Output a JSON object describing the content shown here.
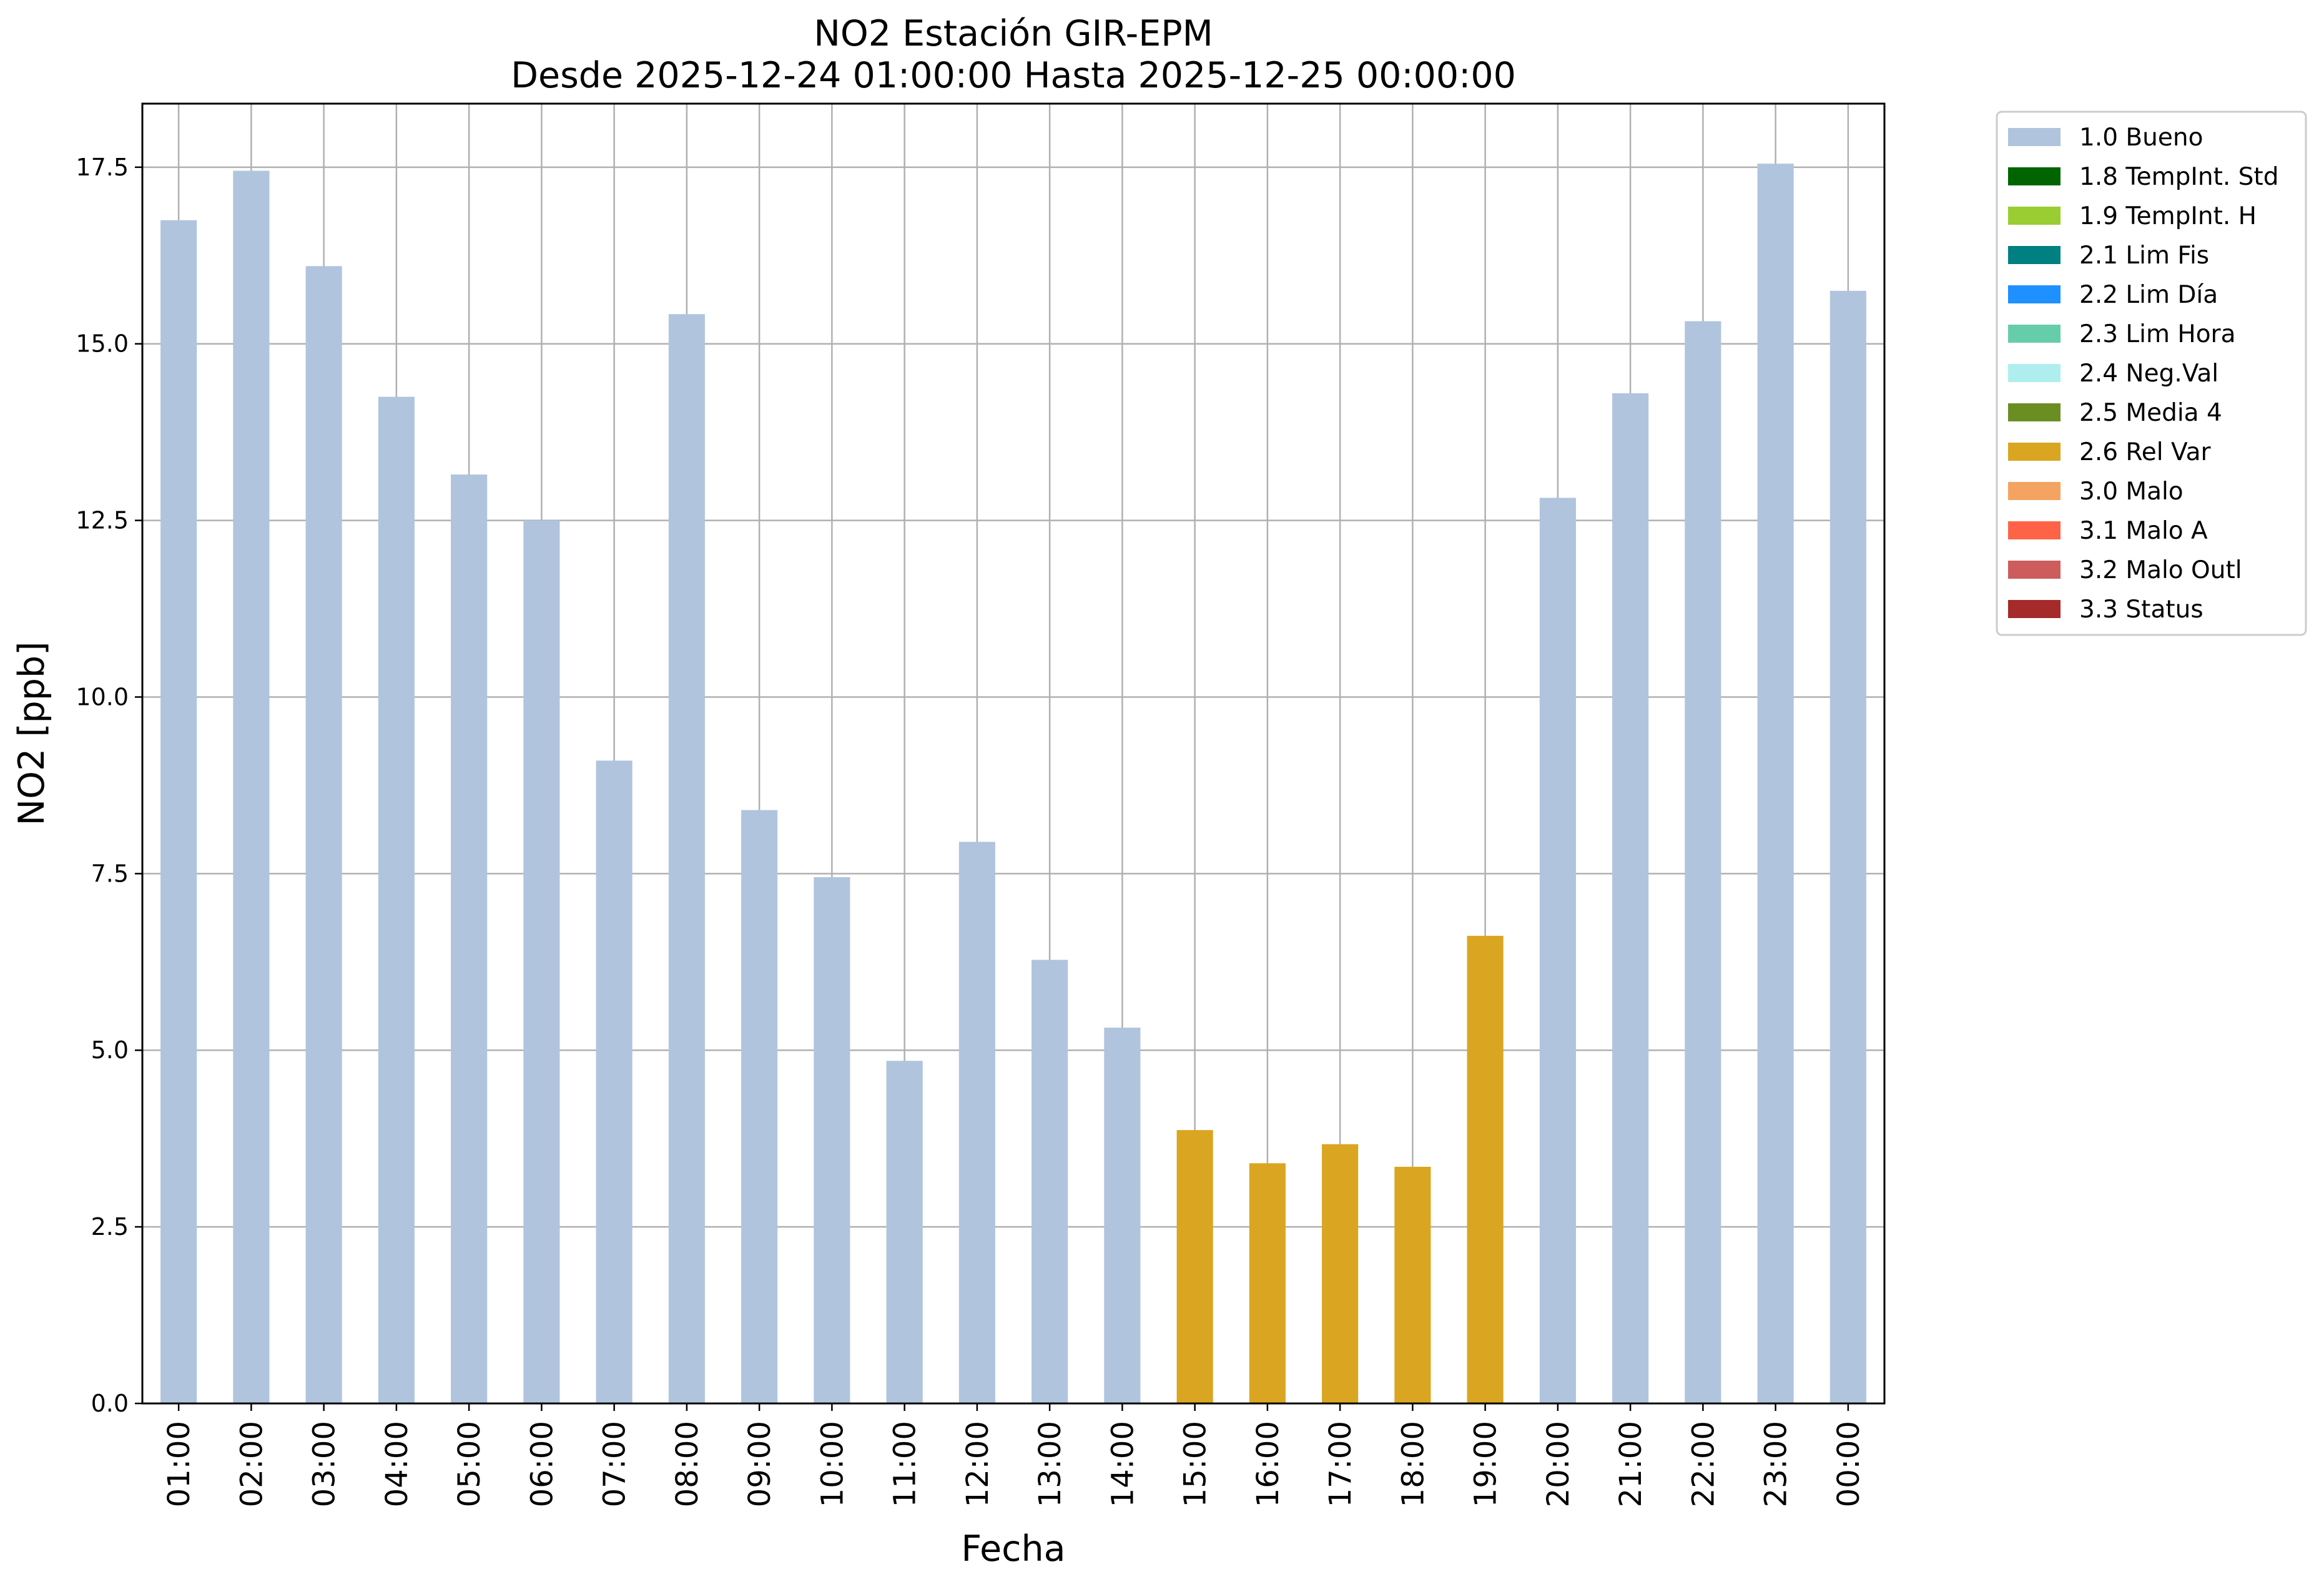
{
  "chart_data": {
    "type": "bar",
    "title": [
      "NO2 Estación GIR-EPM",
      "Desde 2025-12-24 01:00:00 Hasta 2025-12-25 00:00:00"
    ],
    "xlabel": "Fecha",
    "ylabel": "NO2 [ppb]",
    "ylim": [
      0,
      18.4
    ],
    "yticks": [
      "0.0",
      "2.5",
      "5.0",
      "7.5",
      "10.0",
      "12.5",
      "15.0",
      "17.5"
    ],
    "grid": true,
    "legend_position": "outside-top-right",
    "categories": [
      "01:00",
      "02:00",
      "03:00",
      "04:00",
      "05:00",
      "06:00",
      "07:00",
      "08:00",
      "09:00",
      "10:00",
      "11:00",
      "12:00",
      "13:00",
      "14:00",
      "15:00",
      "16:00",
      "17:00",
      "18:00",
      "19:00",
      "20:00",
      "21:00",
      "22:00",
      "23:00",
      "00:00"
    ],
    "values": [
      16.75,
      17.45,
      16.1,
      14.25,
      13.15,
      12.5,
      9.1,
      15.42,
      8.4,
      7.45,
      4.85,
      7.95,
      6.28,
      5.32,
      3.87,
      3.4,
      3.67,
      3.35,
      6.62,
      12.82,
      14.3,
      15.32,
      17.55,
      15.75
    ],
    "flags": [
      "1.0 Bueno",
      "1.0 Bueno",
      "1.0 Bueno",
      "1.0 Bueno",
      "1.0 Bueno",
      "1.0 Bueno",
      "1.0 Bueno",
      "1.0 Bueno",
      "1.0 Bueno",
      "1.0 Bueno",
      "1.0 Bueno",
      "1.0 Bueno",
      "1.0 Bueno",
      "1.0 Bueno",
      "2.6 Rel Var",
      "2.6 Rel Var",
      "2.6 Rel Var",
      "2.6 Rel Var",
      "2.6 Rel Var",
      "1.0 Bueno",
      "1.0 Bueno",
      "1.0 Bueno",
      "1.0 Bueno",
      "1.0 Bueno"
    ],
    "legend": [
      {
        "label": "1.0 Bueno",
        "color": "#b0c4de"
      },
      {
        "label": "1.8 TempInt. Std",
        "color": "#006400"
      },
      {
        "label": "1.9 TempInt. H",
        "color": "#9acd32"
      },
      {
        "label": "2.1 Lim Fis",
        "color": "#008080"
      },
      {
        "label": "2.2 Lim Día",
        "color": "#1e90ff"
      },
      {
        "label": "2.3 Lim Hora",
        "color": "#66cdaa"
      },
      {
        "label": "2.4 Neg.Val",
        "color": "#afeeee"
      },
      {
        "label": "2.5 Media 4",
        "color": "#6b8e23"
      },
      {
        "label": "2.6 Rel Var",
        "color": "#daa520"
      },
      {
        "label": "3.0 Malo",
        "color": "#f4a460"
      },
      {
        "label": "3.1 Malo A",
        "color": "#ff6347"
      },
      {
        "label": "3.2 Malo Outl",
        "color": "#cd5c5c"
      },
      {
        "label": "3.3 Status",
        "color": "#a52a2a"
      }
    ]
  }
}
